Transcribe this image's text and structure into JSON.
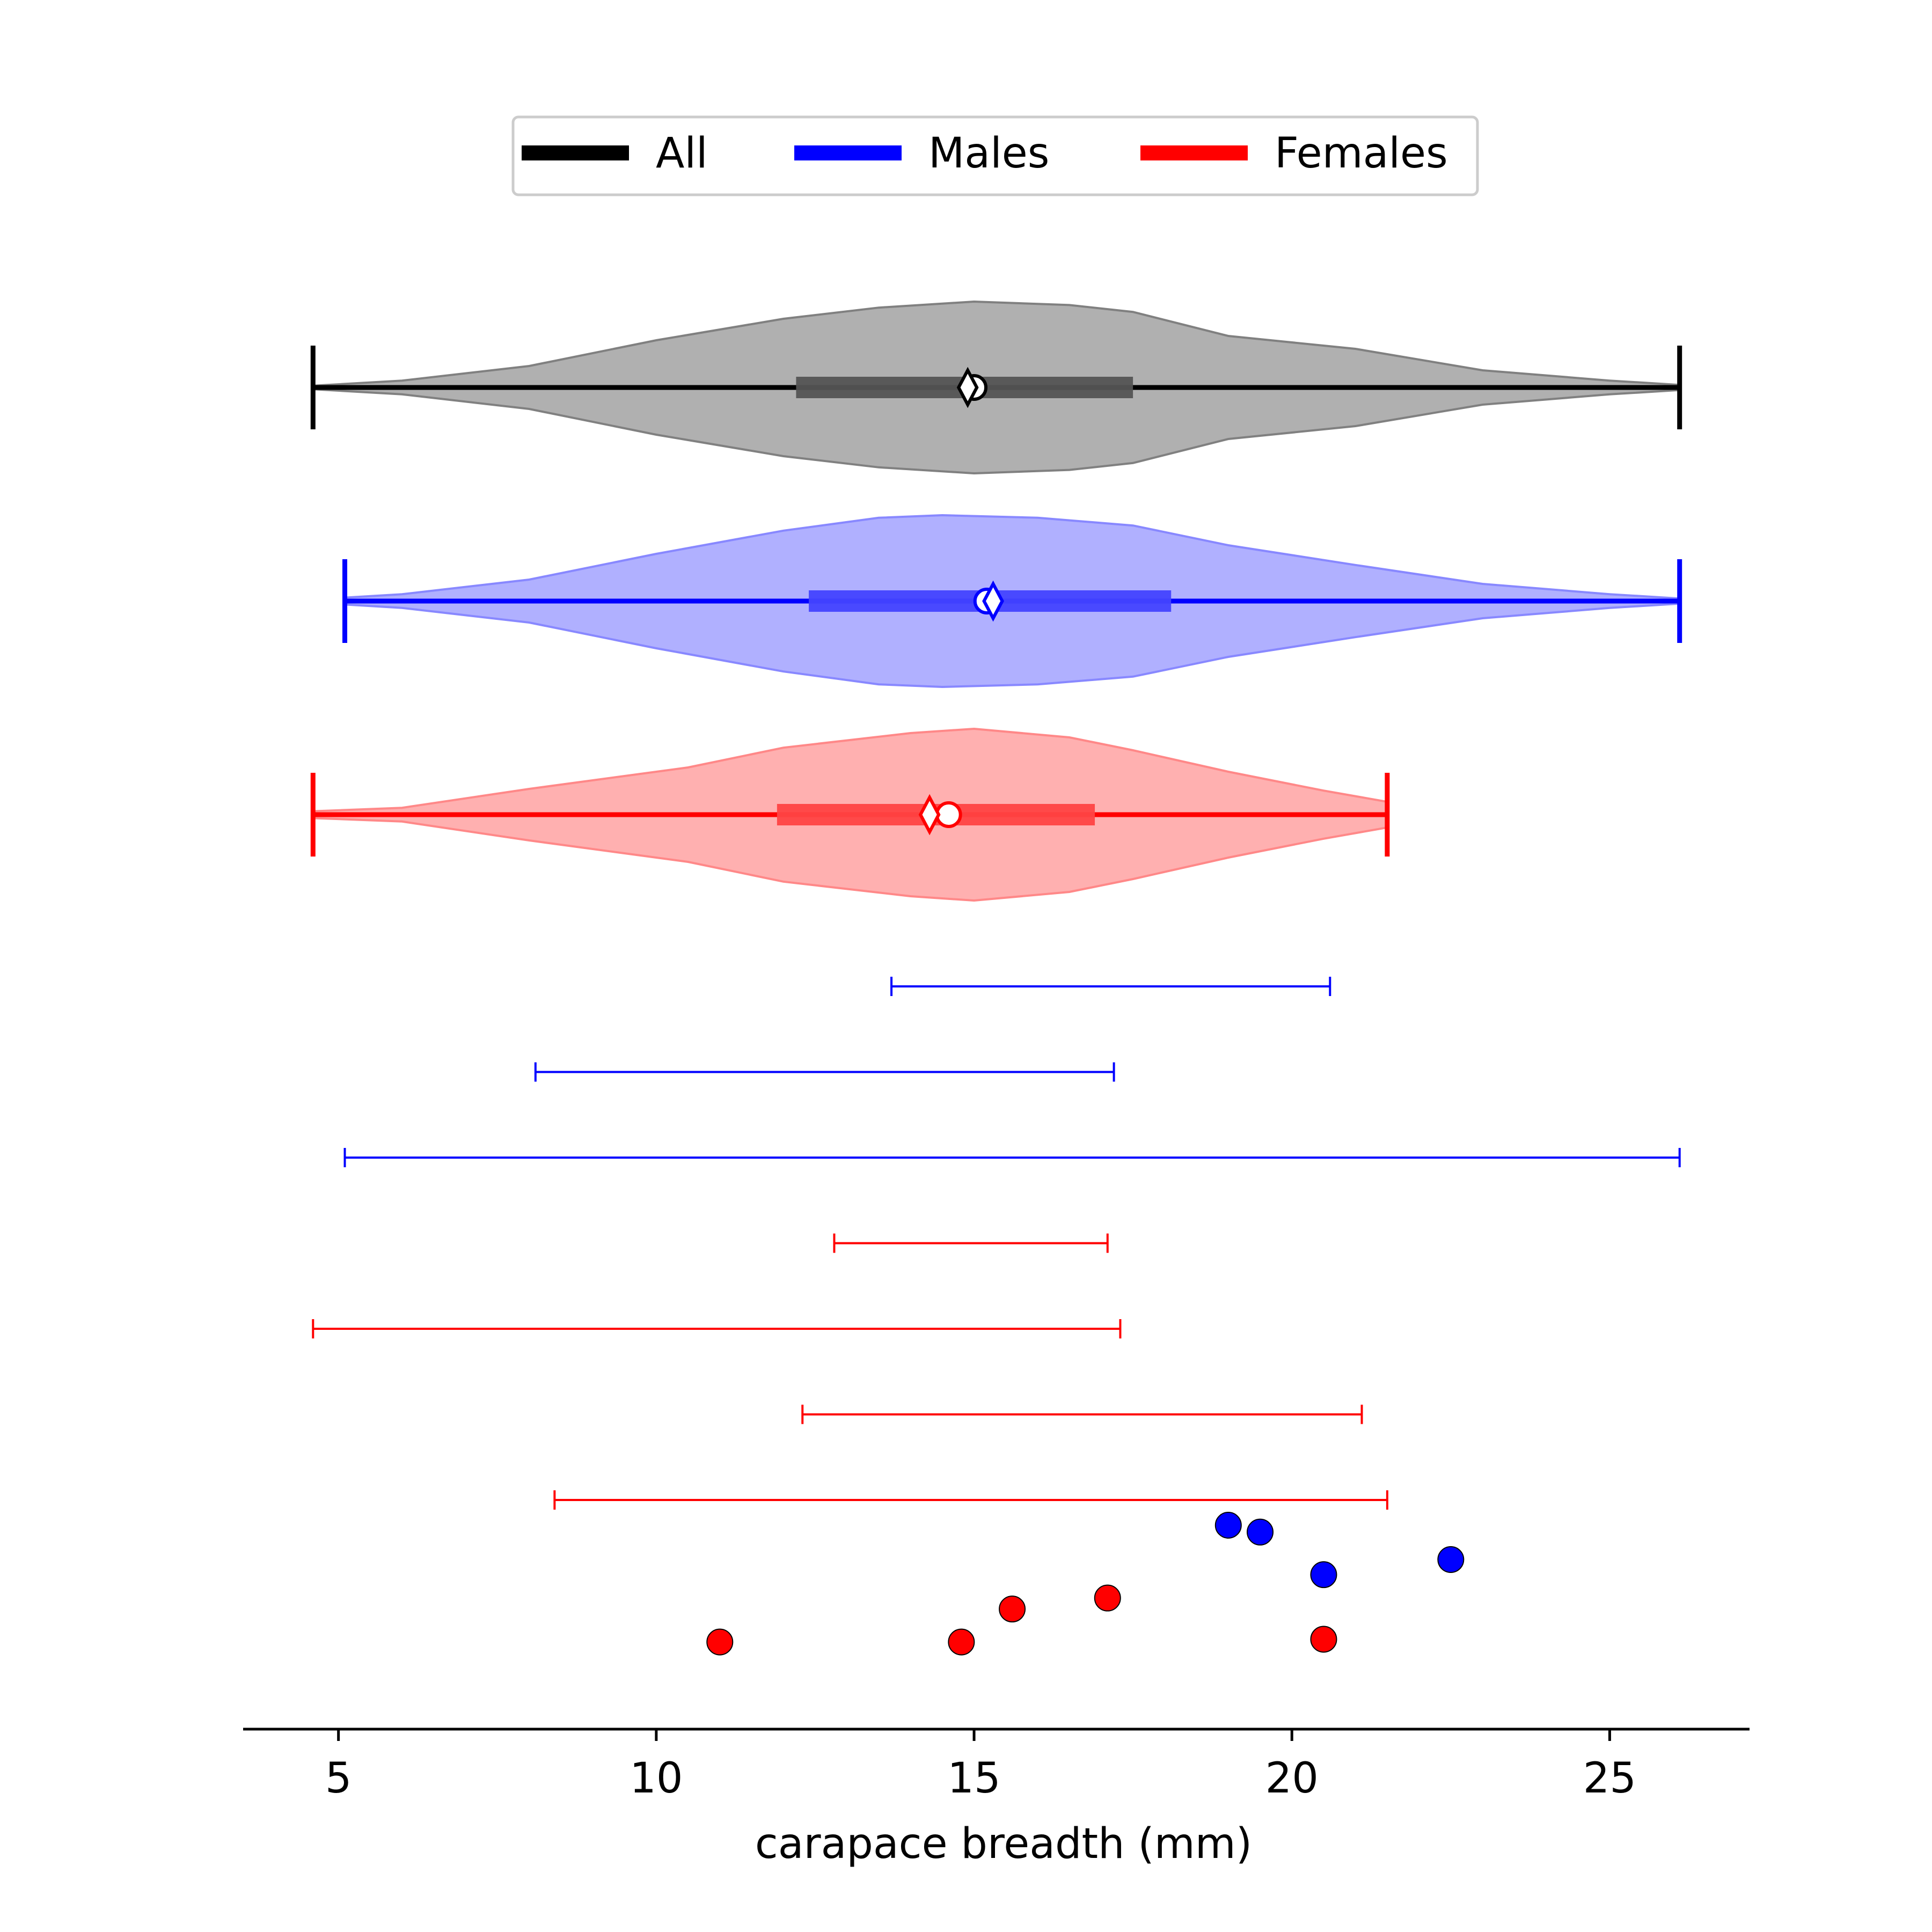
{
  "chart_data": {
    "type": "violin",
    "xlabel": "carapace breadth (mm)",
    "xlim": [
      3.5,
      27.2
    ],
    "xticks": [
      5,
      10,
      15,
      20,
      25
    ],
    "xtick_labels": [
      "5",
      "10",
      "15",
      "20",
      "25"
    ],
    "grid": false,
    "legend": {
      "placement": "top-center",
      "entries": [
        {
          "label": "All",
          "color": "#000000"
        },
        {
          "label": "Males",
          "color": "#0000ff"
        },
        {
          "label": "Females",
          "color": "#ff0000"
        }
      ]
    },
    "violins": [
      {
        "group": "All",
        "color": "#000000",
        "fill": "#b0b0b0",
        "edge": "#808080",
        "bar": "#555555",
        "min": 4.6,
        "max": 26.1,
        "q1": 12.2,
        "q3": 17.5,
        "median": 14.9,
        "mean": 15.0,
        "density": [
          [
            4.6,
            0.02
          ],
          [
            6,
            0.08
          ],
          [
            8,
            0.25
          ],
          [
            10,
            0.55
          ],
          [
            12,
            0.8
          ],
          [
            13.5,
            0.93
          ],
          [
            15,
            1.0
          ],
          [
            16.5,
            0.96
          ],
          [
            17.5,
            0.88
          ],
          [
            19,
            0.6
          ],
          [
            21,
            0.45
          ],
          [
            23,
            0.2
          ],
          [
            25,
            0.08
          ],
          [
            26.1,
            0.03
          ]
        ]
      },
      {
        "group": "Males",
        "color": "#0000ff",
        "fill": "#b0b0ff",
        "edge": "#8888ff",
        "bar": "#4444ff",
        "min": 5.1,
        "max": 26.1,
        "q1": 12.4,
        "q3": 18.1,
        "median": 15.3,
        "mean": 15.2,
        "density": [
          [
            5.1,
            0.04
          ],
          [
            6,
            0.08
          ],
          [
            8,
            0.25
          ],
          [
            10,
            0.55
          ],
          [
            12,
            0.82
          ],
          [
            13.5,
            0.97
          ],
          [
            14.5,
            1.0
          ],
          [
            16,
            0.97
          ],
          [
            17.5,
            0.88
          ],
          [
            19,
            0.65
          ],
          [
            21,
            0.42
          ],
          [
            23,
            0.2
          ],
          [
            25,
            0.08
          ],
          [
            26.1,
            0.03
          ]
        ]
      },
      {
        "group": "Females",
        "color": "#ff0000",
        "fill": "#ffb0b0",
        "edge": "#ff8888",
        "bar": "#ff4444",
        "min": 4.6,
        "max": 21.5,
        "q1": 11.9,
        "q3": 16.9,
        "median": 14.3,
        "mean": 14.6,
        "density": [
          [
            4.6,
            0.04
          ],
          [
            6,
            0.08
          ],
          [
            8,
            0.3
          ],
          [
            9.5,
            0.45
          ],
          [
            10.5,
            0.55
          ],
          [
            12,
            0.78
          ],
          [
            14,
            0.95
          ],
          [
            15,
            1.0
          ],
          [
            16.5,
            0.9
          ],
          [
            17.5,
            0.75
          ],
          [
            19,
            0.5
          ],
          [
            20.5,
            0.28
          ],
          [
            21.5,
            0.15
          ]
        ]
      }
    ],
    "intervals": [
      {
        "color": "#0000ff",
        "lo": 13.7,
        "hi": 20.6
      },
      {
        "color": "#0000ff",
        "lo": 8.1,
        "hi": 17.2
      },
      {
        "color": "#0000ff",
        "lo": 5.1,
        "hi": 26.1
      },
      {
        "color": "#ff0000",
        "lo": 12.8,
        "hi": 17.1
      },
      {
        "color": "#ff0000",
        "lo": 4.6,
        "hi": 17.3
      },
      {
        "color": "#ff0000",
        "lo": 12.3,
        "hi": 21.1
      },
      {
        "color": "#ff0000",
        "lo": 8.4,
        "hi": 21.5
      }
    ],
    "points": [
      {
        "x": 19.0,
        "color": "#0000ff",
        "level": 0.0
      },
      {
        "x": 19.5,
        "color": "#0000ff",
        "level": 0.05
      },
      {
        "x": 22.5,
        "color": "#0000ff",
        "level": 0.25
      },
      {
        "x": 20.5,
        "color": "#0000ff",
        "level": 0.36
      },
      {
        "x": 17.1,
        "color": "#ff0000",
        "level": 0.53
      },
      {
        "x": 15.6,
        "color": "#ff0000",
        "level": 0.61
      },
      {
        "x": 20.5,
        "color": "#ff0000",
        "level": 0.83
      },
      {
        "x": 11.0,
        "color": "#ff0000",
        "level": 0.85
      },
      {
        "x": 14.8,
        "color": "#ff0000",
        "level": 0.85
      }
    ]
  }
}
